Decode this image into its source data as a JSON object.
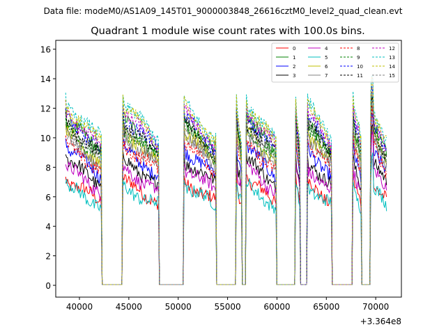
{
  "suptitle": "Data file: modeM0/AS1A09_145T01_9000003848_26616cztM0_level2_quad_clean.evt",
  "chart_data": {
    "type": "line",
    "title": "Quadrant 1 module wise count rates with 100.0s bins.",
    "xlabel": "",
    "ylabel": "",
    "x_offset_label": "+3.364e8",
    "xlim": [
      37600,
      72600
    ],
    "ylim": [
      -0.8,
      16.6
    ],
    "x_ticks": [
      40000,
      45000,
      50000,
      55000,
      60000,
      65000,
      70000
    ],
    "x_tick_labels": [
      "40000",
      "45000",
      "50000",
      "55000",
      "60000",
      "65000",
      "70000"
    ],
    "y_ticks": [
      0,
      2,
      4,
      6,
      8,
      10,
      12,
      14,
      16
    ],
    "y_tick_labels": [
      "0",
      "2",
      "4",
      "6",
      "8",
      "10",
      "12",
      "14",
      "16"
    ],
    "grid": false,
    "legend_position": "top-right",
    "segments": [
      [
        38600,
        42200
      ],
      [
        44400,
        48000
      ],
      [
        50600,
        53800
      ],
      [
        55900,
        56400
      ],
      [
        56900,
        59900
      ],
      [
        61900,
        62300
      ],
      [
        63100,
        65500
      ],
      [
        67700,
        68500
      ],
      [
        69500,
        71100
      ]
    ],
    "gaps": [
      [
        42200,
        44400
      ],
      [
        48000,
        50600
      ],
      [
        53800,
        55900
      ],
      [
        56400,
        56900
      ],
      [
        59900,
        61900
      ],
      [
        62300,
        63100
      ],
      [
        65500,
        67700
      ],
      [
        68500,
        69500
      ]
    ],
    "series": [
      {
        "name": "0",
        "color": "#ff0000",
        "dashed": false,
        "level": 6.3
      },
      {
        "name": "1",
        "color": "#008000",
        "dashed": false,
        "level": 10.0
      },
      {
        "name": "2",
        "color": "#0000ff",
        "dashed": false,
        "level": 8.3
      },
      {
        "name": "3",
        "color": "#000000",
        "dashed": false,
        "level": 7.6
      },
      {
        "name": "4",
        "color": "#bf00bf",
        "dashed": false,
        "level": 7.1
      },
      {
        "name": "5",
        "color": "#00bfbf",
        "dashed": false,
        "level": 6.0
      },
      {
        "name": "6",
        "color": "#bfbf00",
        "dashed": false,
        "level": 9.3
      },
      {
        "name": "7",
        "color": "#808080",
        "dashed": false,
        "level": 9.0
      },
      {
        "name": "8",
        "color": "#ff0000",
        "dashed": true,
        "level": 8.6
      },
      {
        "name": "9",
        "color": "#008000",
        "dashed": true,
        "level": 9.6
      },
      {
        "name": "10",
        "color": "#0000ff",
        "dashed": true,
        "level": 10.2
      },
      {
        "name": "11",
        "color": "#000000",
        "dashed": true,
        "level": 9.8
      },
      {
        "name": "12",
        "color": "#bf00bf",
        "dashed": true,
        "level": 10.5
      },
      {
        "name": "13",
        "color": "#00bfbf",
        "dashed": true,
        "level": 11.0
      },
      {
        "name": "14",
        "color": "#bfbf00",
        "dashed": true,
        "level": 10.8
      },
      {
        "name": "15",
        "color": "#808080",
        "dashed": true,
        "level": 9.4
      }
    ]
  }
}
